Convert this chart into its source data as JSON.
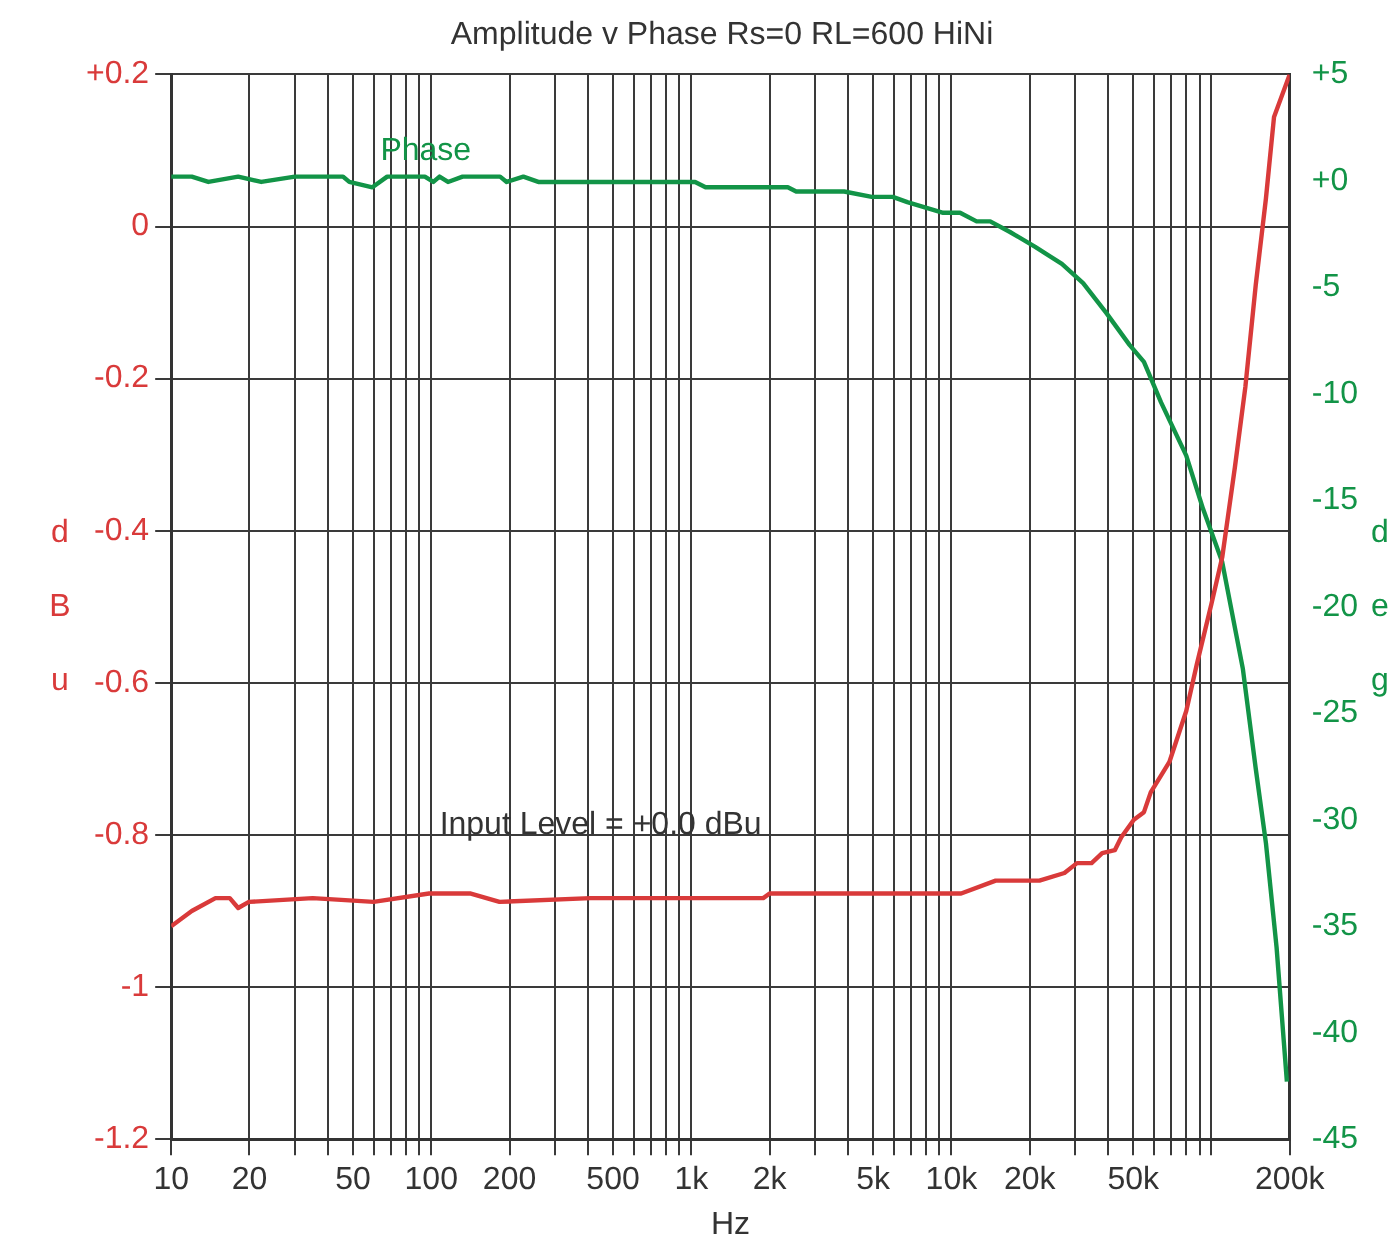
{
  "chart_data": {
    "type": "line",
    "title": "Amplitude v Phase Rs=0 RL=600 HiNi",
    "xlabel": "Hz",
    "ylabel": "dBu",
    "y2label": "deg",
    "annotations": [
      "Input Level = +0.0 dBu"
    ],
    "log": "x",
    "grid": true,
    "legend": false,
    "marker": "none",
    "line_style": "solid",
    "xlim": [
      10,
      200000
    ],
    "xticks": [
      10,
      20,
      {
        "value": 30,
        "label": null
      },
      {
        "value": 40,
        "label": null
      },
      50,
      {
        "value": 60,
        "label": null
      },
      {
        "value": 70,
        "label": null
      },
      {
        "value": 80,
        "label": null
      },
      {
        "value": 90,
        "label": null
      },
      100,
      200,
      {
        "value": 300,
        "label": null
      },
      {
        "value": 400,
        "label": null
      },
      500,
      {
        "value": 600,
        "label": null
      },
      {
        "value": 700,
        "label": null
      },
      {
        "value": 800,
        "label": null
      },
      {
        "value": 900,
        "label": null
      },
      {
        "value": 1000,
        "label": "1k"
      },
      {
        "value": 2000,
        "label": "2k"
      },
      {
        "value": 3000,
        "label": null
      },
      {
        "value": 4000,
        "label": null
      },
      {
        "value": 5000,
        "label": "5k"
      },
      {
        "value": 6000,
        "label": null
      },
      {
        "value": 7000,
        "label": null
      },
      {
        "value": 8000,
        "label": null
      },
      {
        "value": 9000,
        "label": null
      },
      {
        "value": 10000,
        "label": "10k"
      },
      {
        "value": 20000,
        "label": "20k"
      },
      {
        "value": 30000,
        "label": null
      },
      {
        "value": 40000,
        "label": null
      },
      {
        "value": 50000,
        "label": "50k"
      },
      {
        "value": 60000,
        "label": null
      },
      {
        "value": 70000,
        "label": null
      },
      {
        "value": 80000,
        "label": null
      },
      {
        "value": 90000,
        "label": null
      },
      {
        "value": 100000,
        "label": null
      },
      {
        "value": 200000,
        "label": "200k"
      }
    ],
    "ylim": [
      -1.2,
      0.2
    ],
    "yticks": [
      {
        "value": 0.2,
        "label": "+0.2"
      },
      0,
      -0.2,
      -0.4,
      -0.6,
      -0.8,
      -1.0,
      -1.2
    ],
    "y2lim": [
      -45,
      5
    ],
    "y2ticks": [
      {
        "value": 5,
        "label": "+5"
      },
      {
        "value": 0,
        "label": "+0"
      },
      -5,
      -10,
      -15,
      -20,
      -25,
      -30,
      -35,
      -40,
      -45
    ],
    "series": [
      {
        "color": "#d93a3a",
        "x": [
          10,
          12,
          14.8,
          16.8,
          18.1,
          19.9,
          35,
          60,
          98,
          142,
          183,
          410,
          1890,
          2000,
          5000,
          10900,
          14800,
          21800,
          27200,
          30400,
          34600,
          38000,
          42500,
          45000,
          50300,
          55000,
          58400,
          68900,
          80000,
          87800,
          100000,
          110000,
          123000,
          135000,
          148000,
          162000,
          174000,
          200000
        ],
        "values": [
          -0.92,
          -0.9,
          -0.883,
          -0.883,
          -0.896,
          -0.888,
          -0.883,
          -0.888,
          -0.877,
          -0.877,
          -0.888,
          -0.883,
          -0.883,
          -0.877,
          -0.877,
          -0.877,
          -0.86,
          -0.86,
          -0.85,
          -0.837,
          -0.837,
          -0.824,
          -0.82,
          -0.803,
          -0.78,
          -0.77,
          -0.744,
          -0.704,
          -0.637,
          -0.576,
          -0.496,
          -0.435,
          -0.317,
          -0.211,
          -0.077,
          0.037,
          0.144,
          0.2
        ]
      },
      {
        "name": "Phase",
        "color": "#129447",
        "axis": "y2",
        "x": [
          10,
          12,
          13.9,
          18.1,
          22.2,
          29.9,
          45.8,
          48.4,
          59.4,
          67.7,
          94.5,
          101.9,
          107.6,
          116,
          132,
          184,
          195,
          226,
          258,
          294,
          1034,
          1134,
          2350,
          2530,
          3870,
          4940,
          5950,
          6770,
          9300,
          10800,
          12500,
          14100,
          16800,
          21000,
          26600,
          32100,
          39400,
          48400,
          55000,
          64000,
          80000,
          92800,
          110000,
          132000,
          148000,
          162000,
          178000,
          195000
        ],
        "values": [
          0.2,
          0.2,
          -0.05,
          0.2,
          -0.05,
          0.2,
          0.2,
          -0.05,
          -0.3,
          0.2,
          0.2,
          -0.05,
          0.2,
          -0.05,
          0.2,
          0.2,
          -0.05,
          0.2,
          -0.05,
          -0.05,
          -0.05,
          -0.3,
          -0.3,
          -0.5,
          -0.5,
          -0.75,
          -0.75,
          -1.0,
          -1.5,
          -1.5,
          -1.9,
          -1.9,
          -2.4,
          -3.1,
          -3.9,
          -4.8,
          -6.2,
          -7.7,
          -8.5,
          -10.4,
          -12.9,
          -15.4,
          -17.9,
          -22.9,
          -27.6,
          -31.1,
          -36.0,
          -42.3
        ]
      }
    ]
  }
}
